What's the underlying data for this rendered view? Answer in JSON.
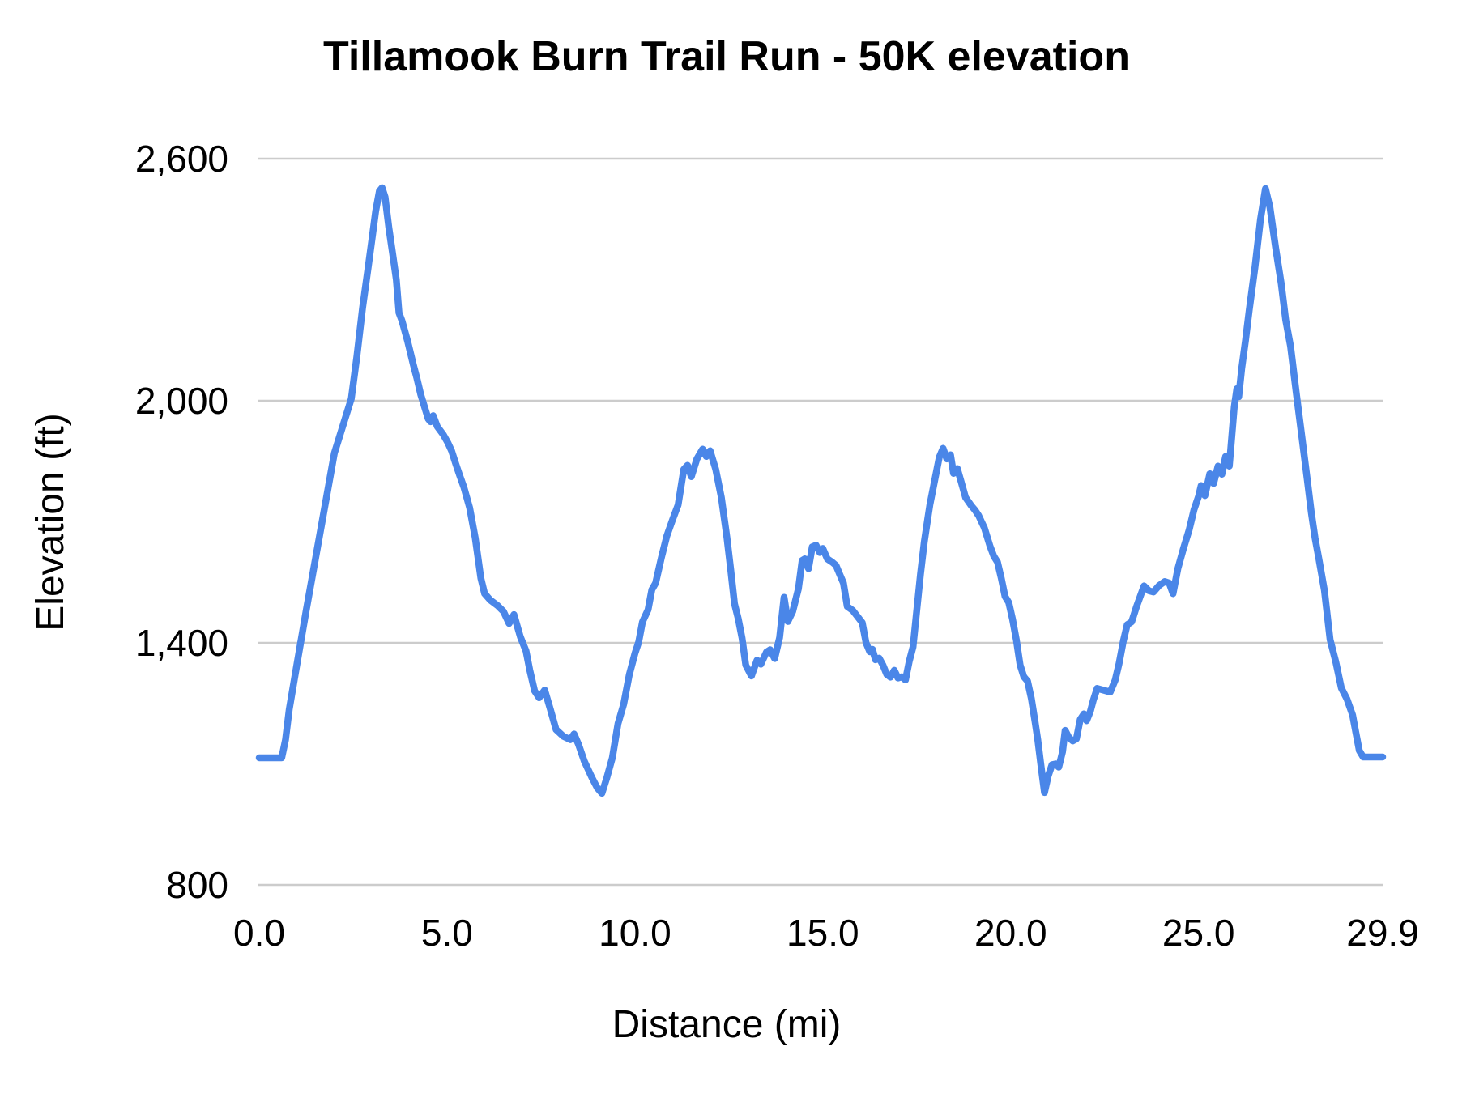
{
  "title": "Tillamook Burn Trail Run - 50K elevation",
  "chart_data": {
    "type": "line",
    "title": "Tillamook Burn Trail Run - 50K elevation",
    "xlabel": "Distance (mi)",
    "ylabel": "Elevation (ft)",
    "xlim": [
      0,
      29.9
    ],
    "ylim": [
      800,
      2600
    ],
    "grid": "horizontal",
    "legend_position": "none",
    "line_color": "#4a86e8",
    "gridline_color": "#cccccc",
    "text_color": "#000000",
    "background_color": "#ffffff",
    "x_ticks": [
      {
        "label": "0.0",
        "value": 0
      },
      {
        "label": "5.0",
        "value": 5
      },
      {
        "label": "10.0",
        "value": 10
      },
      {
        "label": "15.0",
        "value": 15
      },
      {
        "label": "20.0",
        "value": 20
      },
      {
        "label": "25.0",
        "value": 25
      },
      {
        "label": "29.9",
        "value": 29.9
      }
    ],
    "y_ticks": [
      {
        "label": "800",
        "value": 800
      },
      {
        "label": "1,400",
        "value": 1400
      },
      {
        "label": "2,000",
        "value": 2000
      },
      {
        "label": "2,600",
        "value": 2600
      }
    ],
    "series": [
      {
        "name": "Elevation",
        "points": [
          [
            0,
            1115
          ],
          [
            0.6,
            1115
          ],
          [
            0.7,
            1160
          ],
          [
            0.8,
            1235
          ],
          [
            1.0,
            1345
          ],
          [
            1.25,
            1480
          ],
          [
            1.5,
            1610
          ],
          [
            1.75,
            1740
          ],
          [
            2.0,
            1870
          ],
          [
            2.25,
            1945
          ],
          [
            2.45,
            2005
          ],
          [
            2.6,
            2110
          ],
          [
            2.75,
            2230
          ],
          [
            2.9,
            2330
          ],
          [
            3.0,
            2400
          ],
          [
            3.1,
            2470
          ],
          [
            3.2,
            2520
          ],
          [
            3.27,
            2528
          ],
          [
            3.35,
            2505
          ],
          [
            3.45,
            2430
          ],
          [
            3.55,
            2365
          ],
          [
            3.65,
            2300
          ],
          [
            3.72,
            2218
          ],
          [
            3.8,
            2198
          ],
          [
            3.95,
            2148
          ],
          [
            4.1,
            2090
          ],
          [
            4.2,
            2055
          ],
          [
            4.3,
            2015
          ],
          [
            4.4,
            1985
          ],
          [
            4.5,
            1955
          ],
          [
            4.56,
            1948
          ],
          [
            4.63,
            1963
          ],
          [
            4.74,
            1936
          ],
          [
            4.9,
            1916
          ],
          [
            5.02,
            1896
          ],
          [
            5.12,
            1876
          ],
          [
            5.23,
            1844
          ],
          [
            5.34,
            1814
          ],
          [
            5.45,
            1785
          ],
          [
            5.6,
            1735
          ],
          [
            5.75,
            1660
          ],
          [
            5.9,
            1560
          ],
          [
            6.0,
            1522
          ],
          [
            6.15,
            1506
          ],
          [
            6.35,
            1492
          ],
          [
            6.5,
            1478
          ],
          [
            6.65,
            1448
          ],
          [
            6.78,
            1470
          ],
          [
            6.95,
            1415
          ],
          [
            7.1,
            1380
          ],
          [
            7.2,
            1333
          ],
          [
            7.33,
            1281
          ],
          [
            7.45,
            1264
          ],
          [
            7.6,
            1283
          ],
          [
            7.75,
            1235
          ],
          [
            7.9,
            1185
          ],
          [
            8.1,
            1168
          ],
          [
            8.28,
            1160
          ],
          [
            8.38,
            1174
          ],
          [
            8.5,
            1148
          ],
          [
            8.65,
            1107
          ],
          [
            8.85,
            1067
          ],
          [
            9.0,
            1040
          ],
          [
            9.12,
            1027
          ],
          [
            9.25,
            1065
          ],
          [
            9.4,
            1115
          ],
          [
            9.55,
            1200
          ],
          [
            9.7,
            1248
          ],
          [
            9.85,
            1321
          ],
          [
            10.0,
            1374
          ],
          [
            10.1,
            1402
          ],
          [
            10.2,
            1452
          ],
          [
            10.35,
            1482
          ],
          [
            10.45,
            1532
          ],
          [
            10.55,
            1548
          ],
          [
            10.7,
            1610
          ],
          [
            10.85,
            1665
          ],
          [
            11.0,
            1705
          ],
          [
            11.15,
            1742
          ],
          [
            11.3,
            1830
          ],
          [
            11.4,
            1840
          ],
          [
            11.5,
            1812
          ],
          [
            11.65,
            1856
          ],
          [
            11.8,
            1880
          ],
          [
            11.9,
            1862
          ],
          [
            12.0,
            1876
          ],
          [
            12.15,
            1830
          ],
          [
            12.3,
            1760
          ],
          [
            12.45,
            1660
          ],
          [
            12.55,
            1580
          ],
          [
            12.65,
            1497
          ],
          [
            12.75,
            1460
          ],
          [
            12.85,
            1412
          ],
          [
            12.95,
            1345
          ],
          [
            13.1,
            1318
          ],
          [
            13.25,
            1357
          ],
          [
            13.35,
            1347
          ],
          [
            13.5,
            1377
          ],
          [
            13.6,
            1383
          ],
          [
            13.72,
            1361
          ],
          [
            13.85,
            1413
          ],
          [
            13.97,
            1513
          ],
          [
            14.07,
            1453
          ],
          [
            14.2,
            1478
          ],
          [
            14.35,
            1534
          ],
          [
            14.45,
            1604
          ],
          [
            14.52,
            1608
          ],
          [
            14.62,
            1584
          ],
          [
            14.72,
            1638
          ],
          [
            14.82,
            1642
          ],
          [
            14.92,
            1624
          ],
          [
            15.0,
            1634
          ],
          [
            15.12,
            1608
          ],
          [
            15.25,
            1600
          ],
          [
            15.35,
            1592
          ],
          [
            15.45,
            1570
          ],
          [
            15.55,
            1548
          ],
          [
            15.65,
            1490
          ],
          [
            15.8,
            1480
          ],
          [
            15.95,
            1462
          ],
          [
            16.05,
            1450
          ],
          [
            16.15,
            1400
          ],
          [
            16.25,
            1378
          ],
          [
            16.32,
            1384
          ],
          [
            16.4,
            1358
          ],
          [
            16.5,
            1362
          ],
          [
            16.6,
            1345
          ],
          [
            16.7,
            1322
          ],
          [
            16.8,
            1315
          ],
          [
            16.9,
            1332
          ],
          [
            17.0,
            1313
          ],
          [
            17.1,
            1316
          ],
          [
            17.2,
            1308
          ],
          [
            17.3,
            1354
          ],
          [
            17.4,
            1390
          ],
          [
            17.5,
            1480
          ],
          [
            17.6,
            1570
          ],
          [
            17.7,
            1650
          ],
          [
            17.78,
            1700
          ],
          [
            17.85,
            1742
          ],
          [
            17.95,
            1790
          ],
          [
            18.1,
            1860
          ],
          [
            18.2,
            1882
          ],
          [
            18.3,
            1856
          ],
          [
            18.4,
            1866
          ],
          [
            18.48,
            1820
          ],
          [
            18.58,
            1832
          ],
          [
            18.68,
            1800
          ],
          [
            18.8,
            1760
          ],
          [
            18.95,
            1740
          ],
          [
            19.05,
            1729
          ],
          [
            19.15,
            1715
          ],
          [
            19.3,
            1685
          ],
          [
            19.45,
            1640
          ],
          [
            19.55,
            1615
          ],
          [
            19.65,
            1600
          ],
          [
            19.75,
            1560
          ],
          [
            19.85,
            1515
          ],
          [
            19.95,
            1500
          ],
          [
            20.05,
            1458
          ],
          [
            20.15,
            1408
          ],
          [
            20.25,
            1345
          ],
          [
            20.35,
            1316
          ],
          [
            20.45,
            1305
          ],
          [
            20.55,
            1262
          ],
          [
            20.65,
            1204
          ],
          [
            20.72,
            1160
          ],
          [
            20.8,
            1100
          ],
          [
            20.9,
            1029
          ],
          [
            21.0,
            1070
          ],
          [
            21.1,
            1098
          ],
          [
            21.2,
            1100
          ],
          [
            21.28,
            1092
          ],
          [
            21.38,
            1130
          ],
          [
            21.45,
            1183
          ],
          [
            21.55,
            1165
          ],
          [
            21.65,
            1157
          ],
          [
            21.75,
            1162
          ],
          [
            21.85,
            1210
          ],
          [
            21.95,
            1224
          ],
          [
            22.02,
            1207
          ],
          [
            22.12,
            1230
          ],
          [
            22.2,
            1258
          ],
          [
            22.3,
            1287
          ],
          [
            22.5,
            1282
          ],
          [
            22.65,
            1278
          ],
          [
            22.78,
            1307
          ],
          [
            22.88,
            1347
          ],
          [
            23.0,
            1405
          ],
          [
            23.1,
            1445
          ],
          [
            23.22,
            1452
          ],
          [
            23.35,
            1490
          ],
          [
            23.55,
            1541
          ],
          [
            23.68,
            1529
          ],
          [
            23.8,
            1526
          ],
          [
            23.95,
            1542
          ],
          [
            24.1,
            1552
          ],
          [
            24.22,
            1548
          ],
          [
            24.32,
            1522
          ],
          [
            24.45,
            1584
          ],
          [
            24.6,
            1634
          ],
          [
            24.75,
            1680
          ],
          [
            24.88,
            1730
          ],
          [
            25.0,
            1763
          ],
          [
            25.07,
            1790
          ],
          [
            25.17,
            1765
          ],
          [
            25.3,
            1819
          ],
          [
            25.4,
            1795
          ],
          [
            25.52,
            1838
          ],
          [
            25.62,
            1818
          ],
          [
            25.72,
            1862
          ],
          [
            25.82,
            1838
          ],
          [
            25.95,
            1985
          ],
          [
            26.02,
            2030
          ],
          [
            26.07,
            2010
          ],
          [
            26.15,
            2080
          ],
          [
            26.25,
            2150
          ],
          [
            26.35,
            2225
          ],
          [
            26.5,
            2330
          ],
          [
            26.65,
            2450
          ],
          [
            26.78,
            2526
          ],
          [
            26.9,
            2480
          ],
          [
            27.05,
            2380
          ],
          [
            27.2,
            2290
          ],
          [
            27.32,
            2200
          ],
          [
            27.45,
            2135
          ],
          [
            27.6,
            2020
          ],
          [
            27.75,
            1910
          ],
          [
            27.9,
            1800
          ],
          [
            28.0,
            1723
          ],
          [
            28.1,
            1660
          ],
          [
            28.2,
            1610
          ],
          [
            28.35,
            1530
          ],
          [
            28.5,
            1408
          ],
          [
            28.65,
            1354
          ],
          [
            28.8,
            1288
          ],
          [
            28.95,
            1261
          ],
          [
            29.1,
            1221
          ],
          [
            29.18,
            1181
          ],
          [
            29.28,
            1133
          ],
          [
            29.38,
            1117
          ],
          [
            29.9,
            1117
          ]
        ]
      }
    ]
  }
}
